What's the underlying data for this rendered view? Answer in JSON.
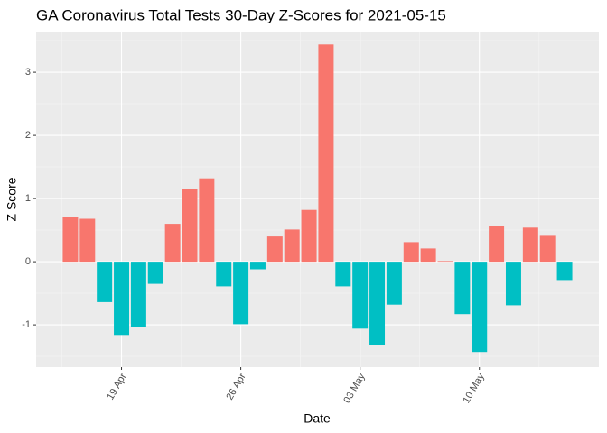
{
  "chart_data": {
    "type": "bar",
    "title": "GA Coronavirus Total Tests 30-Day Z-Scores for 2021-05-15",
    "x_label": "Date",
    "y_label": "Z Score",
    "categories": [
      null,
      null,
      null,
      "19 Apr",
      null,
      null,
      null,
      null,
      null,
      null,
      "26 Apr",
      null,
      null,
      null,
      null,
      null,
      null,
      "03 May",
      null,
      null,
      null,
      null,
      null,
      null,
      "10 May",
      null,
      null,
      null,
      null,
      null
    ],
    "values": [
      0.71,
      0.68,
      -0.64,
      -1.16,
      -1.03,
      -0.35,
      0.6,
      1.15,
      1.32,
      -0.39,
      -0.99,
      -0.12,
      0.4,
      0.51,
      0.82,
      3.44,
      -0.39,
      -1.06,
      -1.32,
      -0.68,
      0.31,
      0.21,
      0.01,
      -0.83,
      -1.43,
      0.57,
      -0.69,
      0.54,
      0.41,
      -0.29
    ],
    "colors": {
      "positive": "#F8766D",
      "negative": "#00BFC4"
    },
    "ylim": [
      -1.67,
      3.63
    ],
    "yticks": [
      -1,
      0,
      1,
      2,
      3
    ],
    "grid": true
  }
}
